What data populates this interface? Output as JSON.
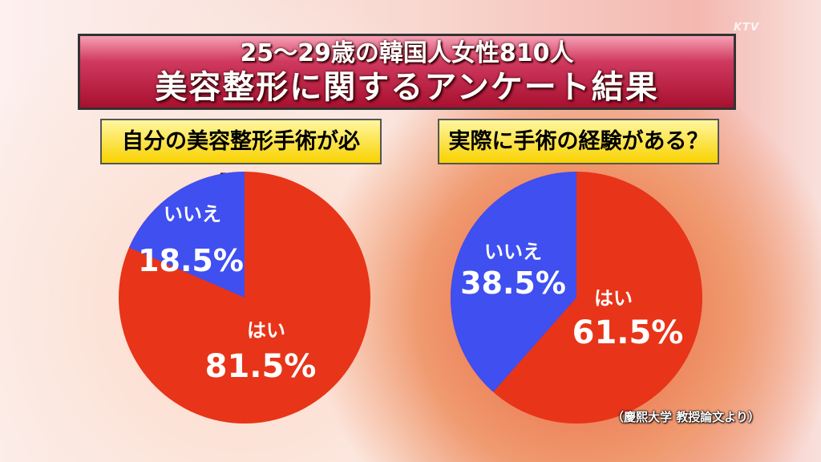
{
  "logo": "KTV",
  "title": {
    "line1": "25〜29歳の韓国人女性810人",
    "line2": "美容整形に関するアンケート結果"
  },
  "source": "（慶熙大学 教授論文より）",
  "colors": {
    "yes": "#e83418",
    "no": "#3f4ff0"
  },
  "chart_data": [
    {
      "type": "pie",
      "title": "自分の美容整形手術が必要？",
      "categories": [
        "いいえ",
        "はい"
      ],
      "values": [
        18.5,
        81.5
      ],
      "labels": [
        "18.5%",
        "81.5%"
      ]
    },
    {
      "type": "pie",
      "title": "実際に手術の経験がある？",
      "categories": [
        "いいえ",
        "はい"
      ],
      "values": [
        38.5,
        61.5
      ],
      "labels": [
        "38.5%",
        "61.5%"
      ]
    }
  ]
}
